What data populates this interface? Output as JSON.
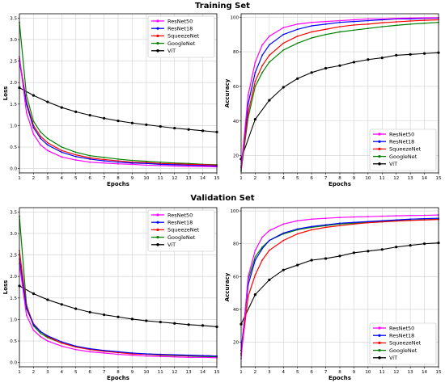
{
  "figure": {
    "section_titles": [
      "Training Set",
      "Validation Set"
    ]
  },
  "colors": {
    "ResNet50": "#ff00ff",
    "ResNet18": "#0000ff",
    "SqueezeNet": "#ff0000",
    "GoogleNet": "#008000",
    "ViT": "#000000"
  },
  "chart_data": [
    {
      "id": "train_loss",
      "type": "line",
      "section": "Training Set",
      "xlabel": "Epochs",
      "ylabel": "Loss",
      "xlim": [
        1,
        15
      ],
      "ylim": [
        -0.1,
        3.6
      ],
      "xticks": [
        1,
        2,
        3,
        4,
        5,
        6,
        7,
        8,
        9,
        10,
        11,
        12,
        13,
        14,
        15
      ],
      "yticks": [
        0.0,
        0.5,
        1.0,
        1.5,
        2.0,
        2.5,
        3.0,
        3.5
      ],
      "ytick_labels": [
        "0.0",
        "0.5",
        "1.0",
        "1.5",
        "2.0",
        "2.5",
        "3.0",
        "3.5"
      ],
      "grid": true,
      "legend_position": "top-right",
      "series": [
        {
          "name": "ResNet50",
          "x": [
            1,
            1.5,
            2,
            2.5,
            3,
            4,
            5,
            6,
            7,
            8,
            9,
            10,
            11,
            12,
            13,
            14,
            15
          ],
          "values": [
            2.6,
            1.3,
            0.8,
            0.55,
            0.42,
            0.27,
            0.2,
            0.15,
            0.13,
            0.11,
            0.1,
            0.08,
            0.07,
            0.06,
            0.05,
            0.05,
            0.04
          ]
        },
        {
          "name": "ResNet18",
          "x": [
            1,
            1.5,
            2,
            2.5,
            3,
            4,
            5,
            6,
            7,
            8,
            9,
            10,
            11,
            12,
            13,
            14,
            15
          ],
          "values": [
            2.5,
            1.5,
            0.95,
            0.7,
            0.55,
            0.38,
            0.28,
            0.22,
            0.18,
            0.15,
            0.13,
            0.12,
            0.1,
            0.09,
            0.08,
            0.07,
            0.06
          ]
        },
        {
          "name": "SqueezeNet",
          "x": [
            1,
            1.5,
            2,
            2.5,
            3,
            4,
            5,
            6,
            7,
            8,
            9,
            10,
            11,
            12,
            13,
            14,
            15
          ],
          "values": [
            2.55,
            1.55,
            1.0,
            0.75,
            0.6,
            0.42,
            0.32,
            0.25,
            0.21,
            0.18,
            0.15,
            0.14,
            0.12,
            0.11,
            0.1,
            0.09,
            0.08
          ]
        },
        {
          "name": "GoogleNet",
          "x": [
            1,
            1.5,
            2,
            2.5,
            3,
            4,
            5,
            6,
            7,
            8,
            9,
            10,
            11,
            12,
            13,
            14,
            15
          ],
          "values": [
            3.4,
            1.7,
            1.1,
            0.85,
            0.7,
            0.5,
            0.38,
            0.3,
            0.26,
            0.22,
            0.19,
            0.17,
            0.15,
            0.13,
            0.12,
            0.1,
            0.09
          ]
        },
        {
          "name": "ViT",
          "x": [
            1,
            2,
            3,
            4,
            5,
            6,
            7,
            8,
            9,
            10,
            11,
            12,
            13,
            14,
            15
          ],
          "values": [
            1.88,
            1.7,
            1.55,
            1.42,
            1.32,
            1.24,
            1.17,
            1.11,
            1.06,
            1.02,
            0.98,
            0.94,
            0.91,
            0.88,
            0.85
          ]
        }
      ]
    },
    {
      "id": "train_acc",
      "type": "line",
      "section": "Training Set",
      "xlabel": "Epochs",
      "ylabel": "Accuracy",
      "xlim": [
        1,
        15
      ],
      "ylim": [
        10,
        102
      ],
      "xticks": [
        1,
        2,
        3,
        4,
        5,
        6,
        7,
        8,
        9,
        10,
        11,
        12,
        13,
        14,
        15
      ],
      "yticks": [
        20,
        40,
        60,
        80,
        100
      ],
      "ytick_labels": [
        "20",
        "40",
        "60",
        "80",
        "100"
      ],
      "grid": true,
      "legend_position": "bottom-right",
      "series": [
        {
          "name": "ResNet50",
          "x": [
            1,
            1.5,
            2,
            2.5,
            3,
            4,
            5,
            6,
            7,
            8,
            9,
            10,
            11,
            12,
            13,
            14,
            15
          ],
          "values": [
            12,
            55,
            74,
            84,
            89,
            94,
            96,
            97,
            97.5,
            98,
            98.5,
            99,
            99,
            99.3,
            99.5,
            99.6,
            99.7
          ]
        },
        {
          "name": "ResNet18",
          "x": [
            1,
            1.5,
            2,
            2.5,
            3,
            4,
            5,
            6,
            7,
            8,
            9,
            10,
            11,
            12,
            13,
            14,
            15
          ],
          "values": [
            14,
            50,
            68,
            78,
            84,
            90,
            93,
            95,
            96,
            97,
            97.5,
            98,
            98.5,
            99,
            99,
            99.3,
            99.5
          ]
        },
        {
          "name": "SqueezeNet",
          "x": [
            1,
            1.5,
            2,
            2.5,
            3,
            4,
            5,
            6,
            7,
            8,
            9,
            10,
            11,
            12,
            13,
            14,
            15
          ],
          "values": [
            13,
            45,
            63,
            72,
            78,
            85,
            89,
            91.5,
            93,
            94.5,
            95.5,
            96,
            96.8,
            97.3,
            97.8,
            98.2,
            98.5
          ]
        },
        {
          "name": "GoogleNet",
          "x": [
            1,
            1.5,
            2,
            2.5,
            3,
            4,
            5,
            6,
            7,
            8,
            9,
            10,
            11,
            12,
            13,
            14,
            15
          ],
          "values": [
            11,
            42,
            60,
            68,
            74,
            81,
            85,
            88,
            90,
            91.5,
            92.5,
            93.5,
            94.5,
            95.3,
            96,
            96.5,
            97
          ]
        },
        {
          "name": "ViT",
          "x": [
            1,
            2,
            3,
            4,
            5,
            6,
            7,
            8,
            9,
            10,
            11,
            12,
            13,
            14,
            15
          ],
          "values": [
            18,
            41,
            52,
            59.5,
            64.5,
            68,
            70.5,
            72,
            74,
            75.5,
            76.5,
            78,
            78.5,
            79,
            79.5
          ]
        }
      ]
    },
    {
      "id": "val_loss",
      "type": "line",
      "section": "Validation Set",
      "xlabel": "Epochs",
      "ylabel": "Loss",
      "xlim": [
        1,
        15
      ],
      "ylim": [
        -0.1,
        3.6
      ],
      "xticks": [
        1,
        2,
        3,
        4,
        5,
        6,
        7,
        8,
        9,
        10,
        11,
        12,
        13,
        14,
        15
      ],
      "yticks": [
        0.0,
        0.5,
        1.0,
        1.5,
        2.0,
        2.5,
        3.0,
        3.5
      ],
      "ytick_labels": [
        "0.0",
        "0.5",
        "1.0",
        "1.5",
        "2.0",
        "2.5",
        "3.0",
        "3.5"
      ],
      "grid": true,
      "legend_position": "top-right",
      "series": [
        {
          "name": "ResNet50",
          "x": [
            1,
            1.5,
            2,
            2.5,
            3,
            4,
            5,
            6,
            7,
            8,
            9,
            10,
            11,
            12,
            13,
            14,
            15
          ],
          "values": [
            2.3,
            1.1,
            0.75,
            0.6,
            0.5,
            0.38,
            0.3,
            0.25,
            0.22,
            0.19,
            0.17,
            0.15,
            0.14,
            0.13,
            0.12,
            0.12,
            0.11
          ]
        },
        {
          "name": "ResNet18",
          "x": [
            1,
            1.5,
            2,
            2.5,
            3,
            4,
            5,
            6,
            7,
            8,
            9,
            10,
            11,
            12,
            13,
            14,
            15
          ],
          "values": [
            2.4,
            1.25,
            0.88,
            0.72,
            0.62,
            0.48,
            0.38,
            0.32,
            0.28,
            0.25,
            0.22,
            0.2,
            0.19,
            0.18,
            0.17,
            0.16,
            0.15
          ]
        },
        {
          "name": "SqueezeNet",
          "x": [
            1,
            1.5,
            2,
            2.5,
            3,
            4,
            5,
            6,
            7,
            8,
            9,
            10,
            11,
            12,
            13,
            14,
            15
          ],
          "values": [
            2.6,
            1.3,
            0.9,
            0.72,
            0.6,
            0.45,
            0.36,
            0.3,
            0.26,
            0.23,
            0.2,
            0.19,
            0.18,
            0.17,
            0.16,
            0.16,
            0.15
          ]
        },
        {
          "name": "GoogleNet",
          "x": [
            1,
            1.5,
            2,
            2.5,
            3,
            4,
            5,
            6,
            7,
            8,
            9,
            10,
            11,
            12,
            13,
            14,
            15
          ],
          "values": [
            3.4,
            1.35,
            0.85,
            0.68,
            0.58,
            0.45,
            0.37,
            0.31,
            0.27,
            0.24,
            0.21,
            0.19,
            0.17,
            0.16,
            0.15,
            0.14,
            0.13
          ]
        },
        {
          "name": "ViT",
          "x": [
            1,
            2,
            3,
            4,
            5,
            6,
            7,
            8,
            9,
            10,
            11,
            12,
            13,
            14,
            15
          ],
          "values": [
            1.78,
            1.6,
            1.46,
            1.35,
            1.25,
            1.17,
            1.11,
            1.06,
            1.01,
            0.97,
            0.94,
            0.91,
            0.88,
            0.86,
            0.83
          ]
        }
      ]
    },
    {
      "id": "val_acc",
      "type": "line",
      "section": "Validation Set",
      "xlabel": "Epochs",
      "ylabel": "Accuracy",
      "xlim": [
        1,
        15
      ],
      "ylim": [
        5,
        102
      ],
      "xticks": [
        1,
        2,
        3,
        4,
        5,
        6,
        7,
        8,
        9,
        10,
        11,
        12,
        13,
        14,
        15
      ],
      "yticks": [
        20,
        40,
        60,
        80,
        100
      ],
      "ytick_labels": [
        "20",
        "40",
        "60",
        "80",
        "100"
      ],
      "grid": true,
      "legend_position": "bottom-right",
      "series": [
        {
          "name": "ResNet50",
          "x": [
            1,
            1.5,
            2,
            2.5,
            3,
            4,
            5,
            6,
            7,
            8,
            9,
            10,
            11,
            12,
            13,
            14,
            15
          ],
          "values": [
            10,
            60,
            76,
            84,
            88,
            92,
            94,
            95,
            95.5,
            96,
            96.3,
            96.5,
            96.8,
            97,
            97.2,
            97.3,
            97.5
          ]
        },
        {
          "name": "ResNet18",
          "x": [
            1,
            1.5,
            2,
            2.5,
            3,
            4,
            5,
            6,
            7,
            8,
            9,
            10,
            11,
            12,
            13,
            14,
            15
          ],
          "values": [
            15,
            55,
            70,
            77,
            82,
            86.5,
            89,
            90.5,
            91.5,
            92.5,
            93,
            93.5,
            94,
            94.5,
            95,
            95.3,
            95.5
          ]
        },
        {
          "name": "SqueezeNet",
          "x": [
            1,
            1.5,
            2,
            2.5,
            3,
            4,
            5,
            6,
            7,
            8,
            9,
            10,
            11,
            12,
            13,
            14,
            15
          ],
          "values": [
            12,
            48,
            61,
            70,
            76,
            82,
            86,
            88.5,
            90,
            91,
            92,
            92.8,
            93.3,
            93.8,
            94.2,
            94.5,
            94.8
          ]
        },
        {
          "name": "GoogleNet",
          "x": [
            1,
            1.5,
            2,
            2.5,
            3,
            4,
            5,
            6,
            7,
            8,
            9,
            10,
            11,
            12,
            13,
            14,
            15
          ],
          "values": [
            13,
            58,
            72,
            78,
            82,
            86,
            88.5,
            90,
            91,
            92,
            92.5,
            93,
            93.5,
            94,
            94.3,
            94.6,
            95
          ]
        },
        {
          "name": "ViT",
          "x": [
            1,
            2,
            3,
            4,
            5,
            6,
            7,
            8,
            9,
            10,
            11,
            12,
            13,
            14,
            15
          ],
          "values": [
            31,
            49,
            58,
            64,
            67,
            70,
            71,
            72.5,
            74.5,
            75.5,
            76.5,
            78,
            79,
            80,
            80.5
          ]
        }
      ]
    }
  ]
}
